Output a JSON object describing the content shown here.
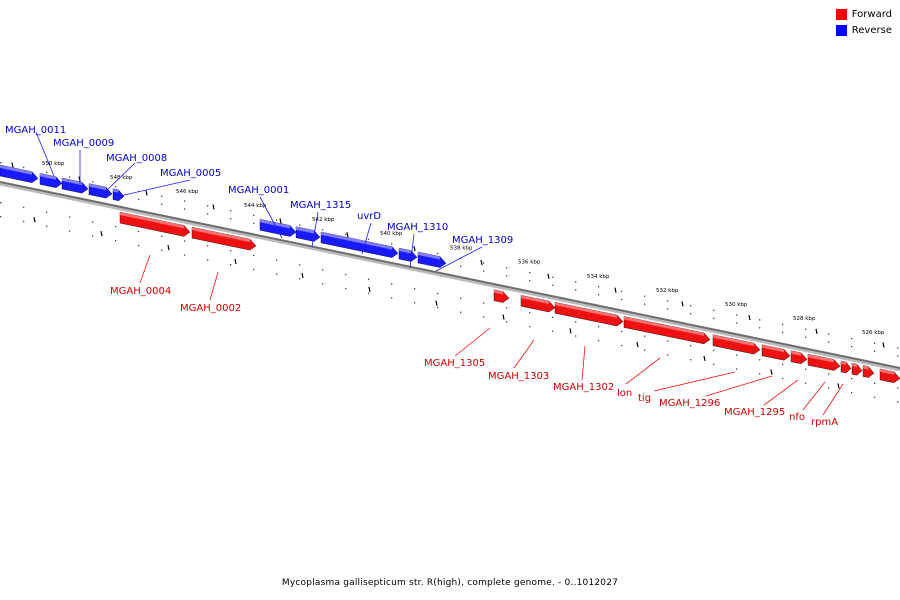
{
  "legend": {
    "forward": {
      "label": "Forward",
      "color": "#ff0000"
    },
    "reverse": {
      "label": "Reverse",
      "color": "#0000ff"
    }
  },
  "caption": "Mycoplasma gallisepticum str. R(high), complete genome. - 0..1012027",
  "scale_labels": [
    "550 kbp",
    "548 kbp",
    "546 kbp",
    "544 kbp",
    "542 kbp",
    "540 kbp",
    "538 kbp",
    "536 kbp",
    "534 kbp",
    "532 kbp",
    "530 kbp",
    "528 kbp",
    "526 kbp"
  ],
  "reverse_genes": [
    "MGAH_0011",
    "MGAH_0009",
    "MGAH_0008",
    "MGAH_0005",
    "MGAH_0001",
    "MGAH_1315",
    "uvrD",
    "MGAH_1310",
    "MGAH_1309"
  ],
  "forward_genes": [
    "MGAH_0004",
    "MGAH_0002",
    "MGAH_1305",
    "MGAH_1303",
    "MGAH_1302",
    "lon",
    "tig",
    "MGAH_1296",
    "MGAH_1295",
    "nfo",
    "rpmA"
  ]
}
